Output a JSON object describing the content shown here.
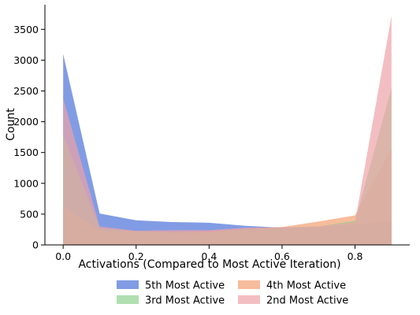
{
  "chart_data": {
    "type": "area",
    "xlabel": "Activations (Compared to Most Active Iteration)",
    "ylabel": "Count",
    "xlim": [
      -0.05,
      0.95
    ],
    "ylim": [
      0,
      3900
    ],
    "x_ticks": [
      "0.0",
      "0.2",
      "0.4",
      "0.6",
      "0.8"
    ],
    "y_ticks": [
      "0",
      "500",
      "1000",
      "1500",
      "2000",
      "2500",
      "3000",
      "3500"
    ],
    "x": [
      0.0,
      0.1,
      0.2,
      0.3,
      0.4,
      0.5,
      0.6,
      0.7,
      0.8,
      0.9
    ],
    "grid": false,
    "legend_position": "bottom-center",
    "series": [
      {
        "name": "5th Most Active",
        "color": "#4c72d8",
        "values": [
          3100,
          510,
          400,
          370,
          360,
          310,
          280,
          280,
          330,
          380
        ]
      },
      {
        "name": "4th Most Active",
        "color": "#f4a070",
        "values": [
          640,
          240,
          220,
          210,
          220,
          260,
          290,
          380,
          480,
          1560
        ]
      },
      {
        "name": "3rd Most Active",
        "color": "#8fd18f",
        "values": [
          1790,
          270,
          220,
          210,
          210,
          260,
          280,
          300,
          390,
          2550
        ]
      },
      {
        "name": "2nd Most Active",
        "color": "#eea3a8",
        "values": [
          2380,
          300,
          230,
          240,
          240,
          280,
          290,
          300,
          370,
          3720
        ]
      }
    ]
  }
}
